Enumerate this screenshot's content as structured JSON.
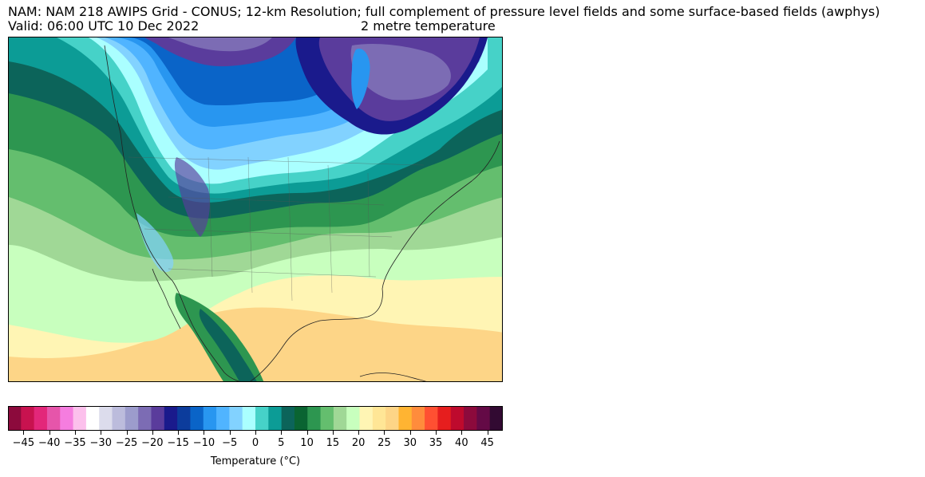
{
  "header": {
    "title_line1": "NAM: NAM 218 AWIPS Grid - CONUS; 12-km Resolution; full complement of pressure level fields and some surface-based fields (awphys)",
    "valid_time": "Valid: 06:00 UTC 10 Dec 2022",
    "field_name": "2 metre temperature"
  },
  "colorbar": {
    "label": "Temperature (°C)",
    "min": -48,
    "max": 48,
    "step": 2.5,
    "tick_labels": [
      "−45",
      "−40",
      "−35",
      "−30",
      "−25",
      "−20",
      "−15",
      "−10",
      "−5",
      "0",
      "5",
      "10",
      "15",
      "20",
      "25",
      "30",
      "35",
      "40",
      "45"
    ],
    "tick_values": [
      -45,
      -40,
      -35,
      -30,
      -25,
      -20,
      -15,
      -10,
      -5,
      0,
      5,
      10,
      15,
      20,
      25,
      30,
      35,
      40,
      45
    ],
    "colors": [
      "#8c0a3c",
      "#c8124f",
      "#e3277a",
      "#e655aa",
      "#f57ddf",
      "#fcc0ec",
      "#ffffff",
      "#dcdcec",
      "#bcbcdc",
      "#9c9ccc",
      "#7c6cb4",
      "#5a3c9c",
      "#1a1a8c",
      "#0c3c9c",
      "#0a64c8",
      "#2896f0",
      "#50b4ff",
      "#82d2ff",
      "#aaffff",
      "#46d2c8",
      "#0c9c96",
      "#0c645a",
      "#0a6432",
      "#2d9650",
      "#64be6e",
      "#a0d896",
      "#c8ffbe",
      "#fff5b4",
      "#ffe696",
      "#fdd587",
      "#ffb432",
      "#ff8c3c",
      "#ff5032",
      "#e61e1e",
      "#be0a2d",
      "#8c0a3c",
      "#640a46",
      "#320a32"
    ]
  },
  "map": {
    "projection": "Lambert conformal (CONUS)",
    "region": "North America"
  }
}
